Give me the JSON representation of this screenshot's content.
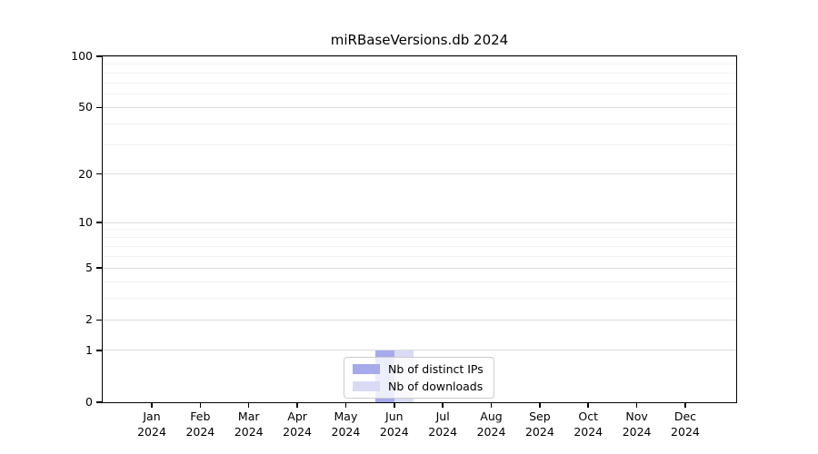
{
  "chart_data": {
    "type": "bar",
    "title": "miRBaseVersions.db 2024",
    "categories": [
      "Jan",
      "Feb",
      "Mar",
      "Apr",
      "May",
      "Jun",
      "Jul",
      "Aug",
      "Sep",
      "Oct",
      "Nov",
      "Dec"
    ],
    "year_label": "2024",
    "series": [
      {
        "name": "Nb of distinct IPs",
        "color": "#a6aaec",
        "values": [
          0,
          0,
          0,
          0,
          0,
          1,
          0,
          0,
          0,
          0,
          0,
          0
        ]
      },
      {
        "name": "Nb of downloads",
        "color": "#d9dbf6",
        "values": [
          0,
          0,
          0,
          0,
          0,
          1,
          0,
          0,
          0,
          0,
          0,
          0
        ]
      }
    ],
    "xlabel": "",
    "ylabel": "",
    "yscale": "log1p",
    "ylim": [
      0,
      100
    ],
    "yticks": [
      0,
      1,
      2,
      5,
      10,
      20,
      50,
      100
    ],
    "minor_yticks": [
      3,
      4,
      6,
      7,
      8,
      9,
      30,
      40,
      60,
      70,
      80,
      90
    ],
    "grid": "horizontal",
    "legend_position": "lower center"
  },
  "colors": {
    "major_grid": "#dcdcdc",
    "minor_grid": "#f2f2f2",
    "axis": "#000000",
    "legend_border": "#cccccc"
  }
}
